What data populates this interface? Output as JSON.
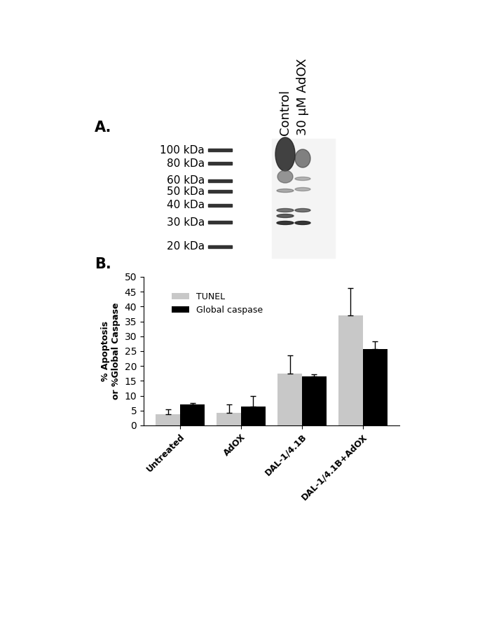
{
  "panel_labels": [
    "A.",
    "B."
  ],
  "blot": {
    "lanes": [
      "Control",
      "30 µM AdOX"
    ],
    "markers": [
      {
        "value": 100,
        "label": "100 kDa"
      },
      {
        "value": 80,
        "label": "80 kDa"
      },
      {
        "value": 60,
        "label": "60 kDa"
      },
      {
        "value": 50,
        "label": "50 kDa"
      },
      {
        "value": 40,
        "label": "40 kDa"
      },
      {
        "value": 30,
        "label": "30 kDa"
      },
      {
        "value": 20,
        "label": "20 kDa"
      }
    ]
  },
  "chart_data": {
    "type": "bar",
    "y_label": "% Apoptosis\nor %Global Caspase",
    "categories": [
      "Untreated",
      "AdOX",
      "DAL-1/4.1B",
      "DAL-1/4.1B+AdOX"
    ],
    "series": [
      {
        "name": "TUNEL",
        "color": "#c8c8c8",
        "values": [
          3.7,
          4.3,
          17.5,
          37.0
        ],
        "errors": [
          1.7,
          2.8,
          6.0,
          9.3
        ]
      },
      {
        "name": "Global caspase",
        "color": "#000000",
        "values": [
          7.0,
          6.3,
          16.5,
          25.7
        ],
        "errors": [
          0.5,
          3.5,
          0.7,
          2.7
        ]
      }
    ],
    "ylim": [
      0,
      50
    ],
    "yticks": [
      0,
      5,
      10,
      15,
      20,
      25,
      30,
      35,
      40,
      45,
      50
    ],
    "legend": "upper left",
    "grid": false
  }
}
